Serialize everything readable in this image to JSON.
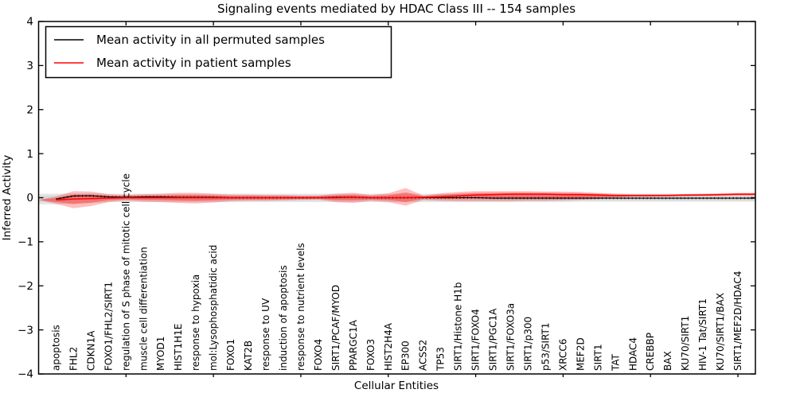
{
  "figure": {
    "title": "Signaling events mediated by HDAC Class III -- 154 samples",
    "xlabel": "Cellular Entities",
    "ylabel": "Inferred Activity",
    "legend": {
      "items": [
        {
          "label": "Mean activity in all permuted samples",
          "color": "#000000"
        },
        {
          "label": "Mean activity in patient samples",
          "color": "#ff0000"
        }
      ]
    }
  },
  "chart_data": {
    "type": "line",
    "title": "Signaling events mediated by HDAC Class III -- 154 samples",
    "xlabel": "Cellular Entities",
    "ylabel": "Inferred Activity",
    "ylim": [
      -4,
      4
    ],
    "yticks": [
      4,
      3,
      2,
      1,
      0,
      -1,
      -2,
      -3,
      -4
    ],
    "grid": false,
    "legend_position": "upper left",
    "categories": [
      "apoptosis",
      "FHL2",
      "CDKN1A",
      "FOXO1/FHL2/SIRT1",
      "regulation of S phase of mitotic cell cycle",
      "muscle cell differentiation",
      "MYOD1",
      "HIST1H1E",
      "response to hypoxia",
      "mol:Lysophosphatidic acid",
      "FOXO1",
      "KAT2B",
      "response to UV",
      "induction of apoptosis",
      "response to nutrient levels",
      "FOXO4",
      "SIRT1/PCAF/MYOD",
      "PPARGC1A",
      "FOXO3",
      "HIST2H4A",
      "EP300",
      "ACSS2",
      "TP53",
      "SIRT1/Histone H1b",
      "SIRT1/FOXO4",
      "SIRT1/PGC1A",
      "SIRT1/FOXO3a",
      "SIRT1/p300",
      "p53/SIRT1",
      "XRCC6",
      "MEF2D",
      "SIRT1",
      "TAT",
      "HDAC4",
      "CREBBP",
      "BAX",
      "KU70/SIRT1",
      "HIV-1 Tat/SIRT1",
      "KU70/SIRT1/BAX",
      "SIRT1/MEF2D/HDAC4"
    ],
    "series": [
      {
        "name": "Mean activity in all permuted samples",
        "color": "#000000",
        "values": [
          -0.03,
          0.04,
          0.045,
          0.02,
          0.01,
          0.02,
          0.02,
          0.01,
          0.01,
          0.01,
          0.0,
          0.0,
          0.0,
          0.0,
          0.0,
          0.0,
          0.01,
          0.01,
          0.0,
          0.0,
          0.0,
          0.0,
          0.0,
          0.0,
          0.0,
          -0.01,
          -0.01,
          -0.01,
          -0.01,
          -0.01,
          -0.01,
          -0.01,
          -0.01,
          -0.01,
          -0.01,
          -0.01,
          -0.01,
          -0.01,
          -0.01,
          -0.01
        ],
        "band_lo": [
          -0.15,
          -0.13,
          -0.12,
          -0.1,
          -0.1,
          -0.1,
          -0.1,
          -0.1,
          -0.1,
          -0.1,
          -0.1,
          -0.1,
          -0.1,
          -0.1,
          -0.1,
          -0.1,
          -0.1,
          -0.1,
          -0.1,
          -0.1,
          -0.1,
          -0.1,
          -0.1,
          -0.1,
          -0.1,
          -0.1,
          -0.1,
          -0.1,
          -0.1,
          -0.1,
          -0.09,
          -0.09,
          -0.09,
          -0.09,
          -0.09,
          -0.09,
          -0.09,
          -0.09,
          -0.09,
          -0.09
        ],
        "band_hi": [
          0.09,
          0.1,
          0.1,
          0.09,
          0.09,
          0.09,
          0.09,
          0.09,
          0.09,
          0.09,
          0.09,
          0.09,
          0.09,
          0.09,
          0.09,
          0.09,
          0.09,
          0.09,
          0.09,
          0.09,
          0.09,
          0.09,
          0.09,
          0.09,
          0.09,
          0.09,
          0.09,
          0.09,
          0.09,
          0.09,
          0.09,
          0.09,
          0.09,
          0.09,
          0.09,
          0.09,
          0.09,
          0.09,
          0.09,
          0.09
        ],
        "band_color": "#c9c9c9"
      },
      {
        "name": "Mean activity in patient samples",
        "color": "#ff0000",
        "values": [
          -0.05,
          -0.03,
          -0.02,
          -0.01,
          0.0,
          0.0,
          0.0,
          0.0,
          0.0,
          0.0,
          0.0,
          0.0,
          0.0,
          0.0,
          0.0,
          0.0,
          0.0,
          0.01,
          0.0,
          0.0,
          0.0,
          0.01,
          0.02,
          0.04,
          0.06,
          0.07,
          0.08,
          0.08,
          0.08,
          0.07,
          0.07,
          0.06,
          0.05,
          0.05,
          0.05,
          0.05,
          0.06,
          0.06,
          0.07,
          0.08
        ],
        "band_lo": [
          -0.14,
          -0.24,
          -0.19,
          -0.1,
          -0.06,
          -0.09,
          -0.1,
          -0.12,
          -0.13,
          -0.11,
          -0.08,
          -0.07,
          -0.07,
          -0.06,
          -0.05,
          -0.04,
          -0.1,
          -0.12,
          -0.07,
          -0.1,
          -0.18,
          -0.05,
          -0.07,
          -0.08,
          -0.08,
          -0.08,
          -0.08,
          -0.07,
          -0.07,
          -0.06,
          -0.05,
          -0.03,
          0.0,
          0.02,
          0.02,
          0.03,
          0.03,
          0.04,
          0.04,
          0.05
        ],
        "band_hi": [
          0.03,
          0.15,
          0.14,
          0.08,
          0.06,
          0.08,
          0.09,
          0.11,
          0.11,
          0.09,
          0.07,
          0.07,
          0.06,
          0.06,
          0.05,
          0.05,
          0.09,
          0.11,
          0.06,
          0.1,
          0.22,
          0.05,
          0.1,
          0.13,
          0.15,
          0.15,
          0.15,
          0.15,
          0.14,
          0.14,
          0.13,
          0.11,
          0.09,
          0.08,
          0.08,
          0.08,
          0.08,
          0.09,
          0.1,
          0.11
        ],
        "band_color": "#ff0000"
      }
    ]
  }
}
